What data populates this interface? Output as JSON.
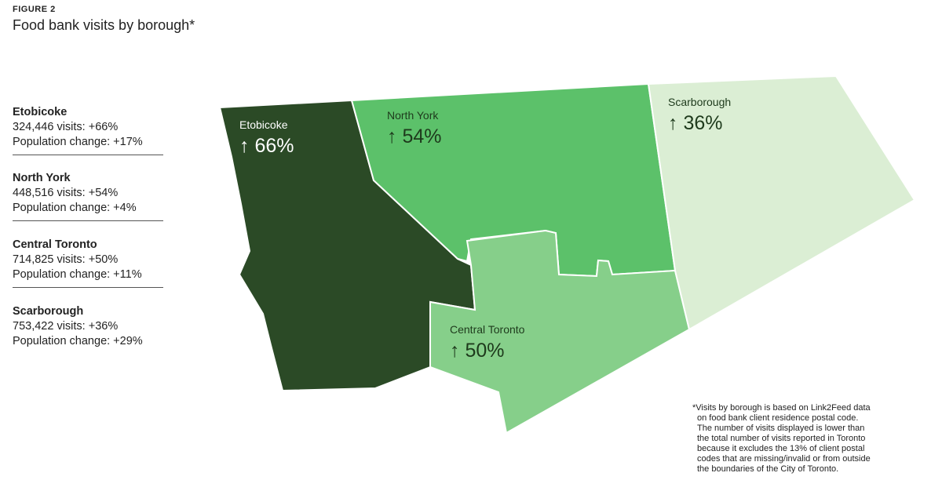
{
  "header": {
    "figure": "FIGURE 2",
    "title": "Food bank visits by borough*"
  },
  "legend": [
    {
      "name": "Etobicoke",
      "visits": "324,446 visits: +66%",
      "population": "Population change: +17%"
    },
    {
      "name": "North York",
      "visits": "448,516 visits: +54%",
      "population": "Population change: +4%"
    },
    {
      "name": "Central Toronto",
      "visits": "714,825 visits: +50%",
      "population": "Population change: +11%"
    },
    {
      "name": "Scarborough",
      "visits": "753,422 visits: +36%",
      "population": "Population change: +29%"
    }
  ],
  "regions": [
    {
      "label": "Etobicoke",
      "change": "↑ 66%",
      "color": "#2b4a26"
    },
    {
      "label": "North York",
      "change": "↑ 54%",
      "color": "#5cc16a"
    },
    {
      "label": "Central Toronto",
      "change": "↑ 50%",
      "color": "#86cf8a"
    },
    {
      "label": "Scarborough",
      "change": "↑ 36%",
      "color": "#dbeed4"
    }
  ],
  "footnote": [
    "*Visits by borough is based on Link2Feed data",
    "on food bank client residence postal code.",
    "The number of visits displayed is lower than",
    "the total number of visits reported in Toronto",
    "because it excludes the 13% of client postal",
    "codes that are missing/invalid or from outside",
    "the boundaries of the City of Toronto."
  ]
}
